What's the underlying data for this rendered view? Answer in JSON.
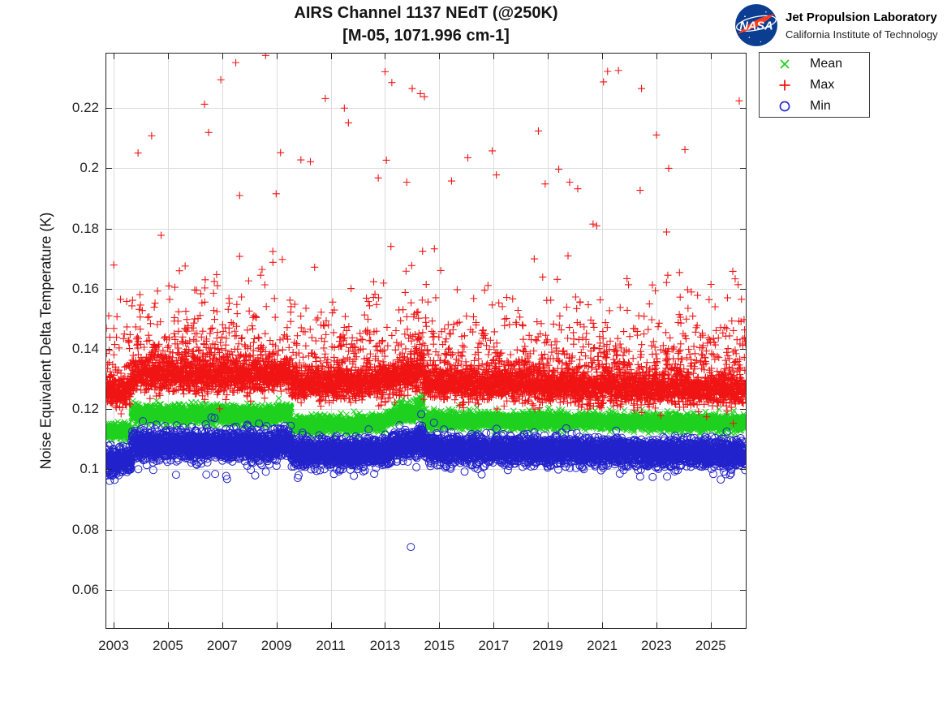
{
  "header": {
    "title_line1": "AIRS Channel 1137 NEdT (@250K)",
    "title_line2": "[M-05, 1071.996 cm-1]",
    "logo": {
      "insignia_text": "NASA",
      "org_line1": "Jet Propulsion Laboratory",
      "org_line2": "California Institute of Technology",
      "insignia_bg": "#0b3d91",
      "insignia_swoosh": "#fc3d21"
    }
  },
  "legend": {
    "position": "outside-top-right",
    "items": [
      {
        "label": "Mean",
        "marker": "x",
        "color": "#1ed11e"
      },
      {
        "label": "Max",
        "marker": "plus",
        "color": "#f01414"
      },
      {
        "label": "Min",
        "marker": "circle",
        "color": "#2222cc"
      }
    ]
  },
  "chart_data": {
    "type": "scatter",
    "title": "AIRS Channel 1137 NEdT (@250K) [M-05, 1071.996 cm-1]",
    "xlabel": "",
    "ylabel": "Noise Equivalent Delta Temperature (K)",
    "xlim": [
      2002.7,
      2026.32
    ],
    "ylim": [
      0.047,
      0.2384
    ],
    "xticks": [
      2003,
      2005,
      2007,
      2009,
      2011,
      2013,
      2015,
      2017,
      2019,
      2021,
      2023,
      2025
    ],
    "yticks": [
      0.06,
      0.08,
      0.1,
      0.12,
      0.14,
      0.16,
      0.18,
      0.2,
      0.22
    ],
    "grid": true,
    "grid_color": "#dcdcdc",
    "axis_color": "#252525",
    "legend_position": "outside-top-right",
    "sampling": {
      "t_start": 2002.73,
      "t_end": 2026.3,
      "dt": 0.0035,
      "seed": 7,
      "x_jitter": 0.002
    },
    "series": [
      {
        "name": "Mean",
        "marker": "x",
        "color": "#1ed11e",
        "marker_size": 7,
        "description": "dense band of daily mean NEdT; values read from band envelope",
        "band_segments": [
          [
            2002.73,
            2003.66,
            0.1125,
            0.1125,
            0.0013
          ],
          [
            2003.66,
            2009.0,
            0.1183,
            0.118,
            0.0016
          ],
          [
            2009.0,
            2009.55,
            0.1188,
            0.1188,
            0.0016
          ],
          [
            2009.55,
            2013.0,
            0.1146,
            0.1155,
            0.0014
          ],
          [
            2013.0,
            2013.55,
            0.116,
            0.1185,
            0.0015
          ],
          [
            2013.55,
            2014.2,
            0.1185,
            0.119,
            0.0016
          ],
          [
            2014.2,
            2014.4,
            0.121,
            0.1212,
            0.0018
          ],
          [
            2014.4,
            2020.0,
            0.1163,
            0.116,
            0.0013
          ],
          [
            2020.0,
            2026.3,
            0.116,
            0.1152,
            0.0013
          ]
        ],
        "outliers": [
          [
            2013.92,
            0.1228
          ],
          [
            2016.0,
            0.1187
          ],
          [
            2018.7,
            0.1197
          ],
          [
            2019.05,
            0.1205
          ],
          [
            2023.5,
            0.1183
          ]
        ]
      },
      {
        "name": "Max",
        "marker": "plus",
        "color": "#f01414",
        "marker_size": 9,
        "description": "dense band of daily max NEdT with upward-scattered tail",
        "band_segments": [
          [
            2002.73,
            2003.66,
            0.1258,
            0.1258,
            0.0024
          ],
          [
            2003.66,
            2009.0,
            0.1312,
            0.1308,
            0.0028
          ],
          [
            2009.0,
            2009.55,
            0.1315,
            0.1315,
            0.0028
          ],
          [
            2009.55,
            2013.0,
            0.1282,
            0.1288,
            0.0026
          ],
          [
            2013.0,
            2013.55,
            0.129,
            0.1308,
            0.0028
          ],
          [
            2013.55,
            2014.2,
            0.1308,
            0.131,
            0.0028
          ],
          [
            2014.2,
            2014.4,
            0.1325,
            0.1325,
            0.003
          ],
          [
            2014.4,
            2020.0,
            0.1285,
            0.1275,
            0.0026
          ],
          [
            2020.0,
            2026.3,
            0.1272,
            0.1262,
            0.0026
          ]
        ],
        "upper_tail": {
          "probability": 0.3,
          "scale": 0.0085,
          "max_excess": 0.062
        },
        "outliers": [
          [
            2003.9,
            0.2051
          ],
          [
            2004.4,
            0.2108
          ],
          [
            2006.35,
            0.2213
          ],
          [
            2006.5,
            0.2119
          ],
          [
            2006.95,
            0.2294
          ],
          [
            2007.5,
            0.2351
          ],
          [
            2008.6,
            0.2375
          ],
          [
            2009.15,
            0.2052
          ],
          [
            2009.9,
            0.2028
          ],
          [
            2010.25,
            0.2022
          ],
          [
            2010.8,
            0.2232
          ],
          [
            2011.5,
            0.22
          ],
          [
            2011.65,
            0.2151
          ],
          [
            2012.75,
            0.1968
          ],
          [
            2013.0,
            0.2321
          ],
          [
            2013.25,
            0.2285
          ],
          [
            2013.05,
            0.2027
          ],
          [
            2013.8,
            0.1954
          ],
          [
            2014.0,
            0.2265
          ],
          [
            2014.3,
            0.2248
          ],
          [
            2014.45,
            0.2238
          ],
          [
            2015.45,
            0.1958
          ],
          [
            2016.05,
            0.2035
          ],
          [
            2016.95,
            0.2058
          ],
          [
            2017.1,
            0.1978
          ],
          [
            2018.65,
            0.2124
          ],
          [
            2018.9,
            0.1948
          ],
          [
            2019.4,
            0.1997
          ],
          [
            2019.8,
            0.1954
          ],
          [
            2020.1,
            0.1932
          ],
          [
            2021.05,
            0.2287
          ],
          [
            2021.2,
            0.2322
          ],
          [
            2021.6,
            0.2325
          ],
          [
            2022.4,
            0.1927
          ],
          [
            2022.45,
            0.2265
          ],
          [
            2023.0,
            0.2111
          ],
          [
            2023.45,
            0.2
          ],
          [
            2024.05,
            0.2062
          ],
          [
            2026.05,
            0.2224
          ]
        ]
      },
      {
        "name": "Min",
        "marker": "circle",
        "color": "#2222cc",
        "marker_size": 9,
        "description": "dense band of daily min NEdT with rare low outliers",
        "band_segments": [
          [
            2002.73,
            2003.66,
            0.1028,
            0.1028,
            0.0022
          ],
          [
            2003.66,
            2009.0,
            0.1082,
            0.1078,
            0.0024
          ],
          [
            2009.0,
            2009.55,
            0.1085,
            0.1085,
            0.0024
          ],
          [
            2009.55,
            2013.0,
            0.1052,
            0.106,
            0.0023
          ],
          [
            2013.0,
            2013.55,
            0.1062,
            0.1082,
            0.0024
          ],
          [
            2013.55,
            2014.2,
            0.1082,
            0.1085,
            0.0024
          ],
          [
            2014.2,
            2014.4,
            0.1105,
            0.111,
            0.0025
          ],
          [
            2014.4,
            2020.0,
            0.1068,
            0.1062,
            0.0022
          ],
          [
            2020.0,
            2026.3,
            0.106,
            0.1052,
            0.0022
          ]
        ],
        "lower_tail": {
          "probability": 0.05,
          "scale": 0.002,
          "max_excess": 0.008
        },
        "outliers": [
          [
            2013.95,
            0.0742
          ],
          [
            2005.3,
            0.0982
          ],
          [
            2012.6,
            0.0985
          ],
          [
            2003.1,
            0.0985
          ]
        ]
      }
    ]
  }
}
